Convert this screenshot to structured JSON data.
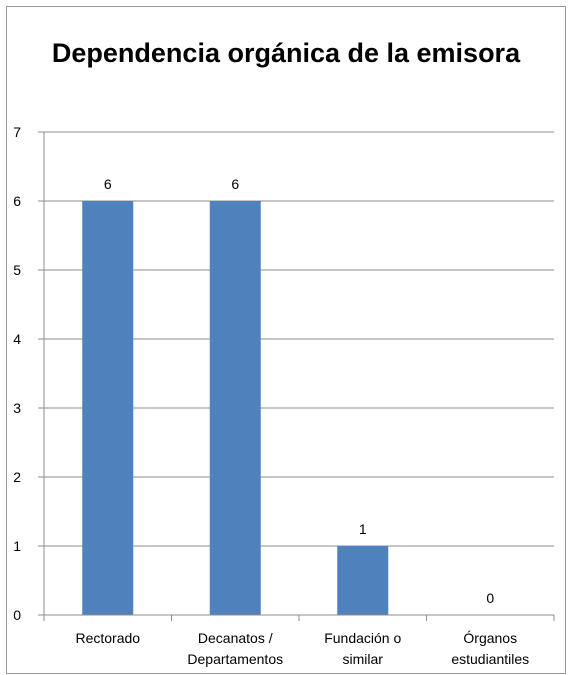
{
  "chart_data": {
    "type": "bar",
    "title": "Dependencia orgánica de la emisora",
    "categories": [
      "Rectorado",
      "Decanatos / Departamentos",
      "Fundación o similar",
      "Órganos estudiantiles"
    ],
    "category_lines": [
      [
        "Rectorado"
      ],
      [
        "Decanatos /",
        "Departamentos"
      ],
      [
        "Fundación o",
        "similar"
      ],
      [
        "Órganos",
        "estudiantiles"
      ]
    ],
    "values": [
      6,
      6,
      1,
      0
    ],
    "data_labels": [
      "6",
      "6",
      "1",
      "0"
    ],
    "ylim": [
      0,
      7
    ],
    "yticks": [
      0,
      1,
      2,
      3,
      4,
      5,
      6,
      7
    ],
    "grid": true,
    "legend": "none",
    "bar_color": "#4f81bd",
    "grid_color": "#8c8c8c"
  }
}
